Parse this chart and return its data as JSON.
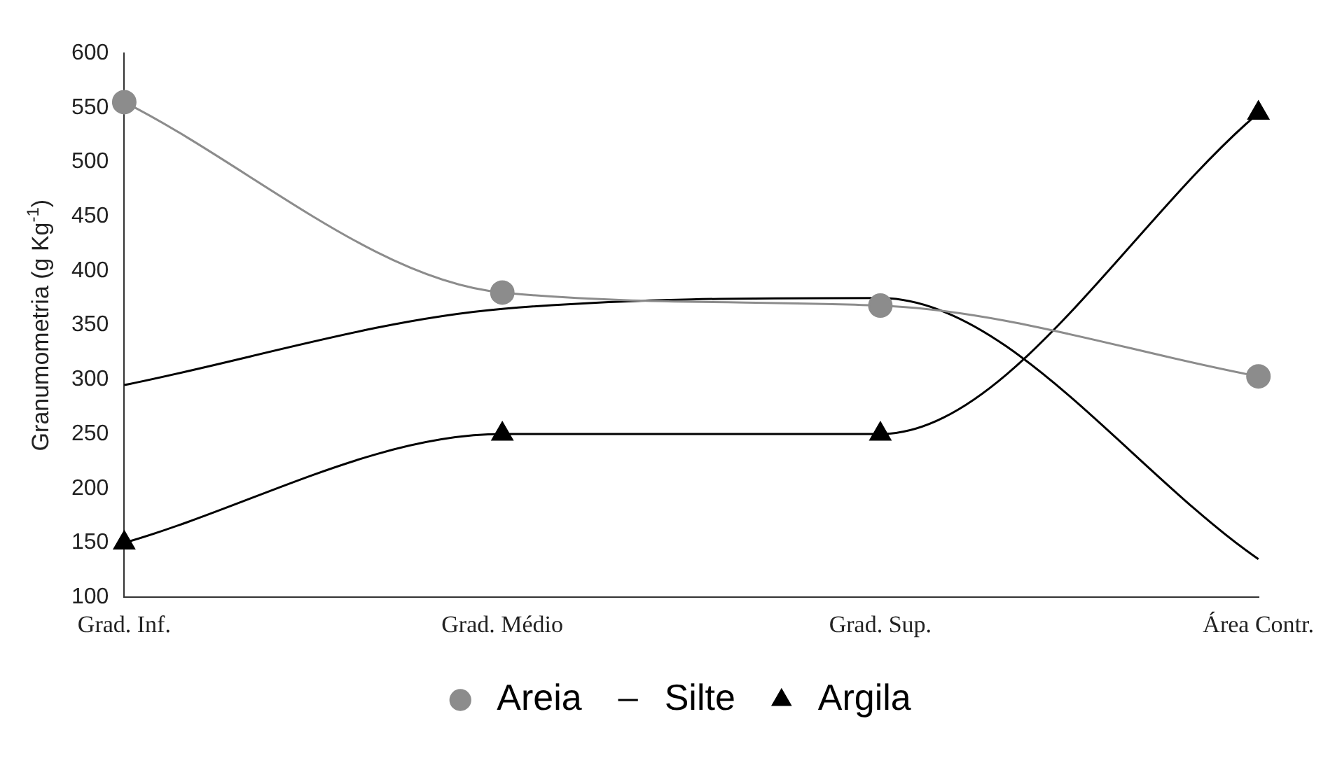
{
  "chart_data": {
    "type": "line",
    "ylabel": "Granumometria (g Kg$^{-1}$)",
    "categories": [
      "Grad. Inf.",
      "Grad. Médio",
      "Grad. Sup.",
      "Área Contr."
    ],
    "series": [
      {
        "name": "Areia",
        "color": "#8c8c8c",
        "marker": "circle",
        "values": [
          555,
          380,
          368,
          303
        ]
      },
      {
        "name": "Silte",
        "color": "#000000",
        "marker": "none",
        "values": [
          295,
          365,
          375,
          135
        ]
      },
      {
        "name": "Argila",
        "color": "#000000",
        "marker": "triangle",
        "values": [
          150,
          250,
          250,
          545
        ]
      }
    ],
    "ylim": [
      100,
      600
    ],
    "yticks": [
      100,
      150,
      200,
      250,
      300,
      350,
      400,
      450,
      500,
      550,
      600
    ],
    "grid": false,
    "legend": "bottom",
    "line_style": "solid"
  }
}
